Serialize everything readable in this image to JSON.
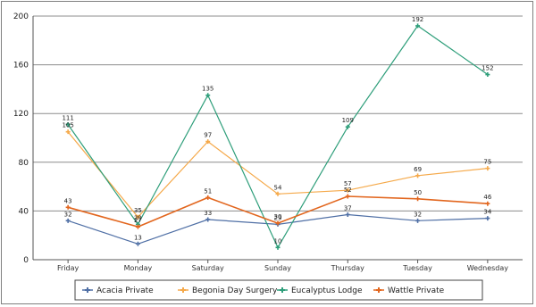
{
  "chart_data": {
    "type": "line",
    "title": "",
    "xlabel": "",
    "ylabel": "",
    "categories": [
      "Friday",
      "Monday",
      "Saturday",
      "Sunday",
      "Thursday",
      "Tuesday",
      "Wednesday"
    ],
    "ylim": [
      0,
      200
    ],
    "yticks": [
      0,
      40,
      80,
      120,
      160,
      200
    ],
    "grid": true,
    "legend_position": "bottom",
    "series": [
      {
        "name": "Acacia Private",
        "color": "#4f6fa5",
        "values": [
          32,
          13,
          33,
          29,
          37,
          32,
          34
        ]
      },
      {
        "name": "Begonia Day Surgery",
        "color": "#f5a94a",
        "values": [
          105,
          35,
          97,
          54,
          57,
          69,
          75
        ]
      },
      {
        "name": "Eucalyptus Lodge",
        "color": "#2e9e7a",
        "values": [
          111,
          29,
          135,
          10,
          109,
          192,
          152
        ]
      },
      {
        "name": "Wattle Private",
        "color": "#e2661e",
        "values": [
          43,
          27,
          51,
          30,
          52,
          50,
          46
        ]
      }
    ]
  }
}
